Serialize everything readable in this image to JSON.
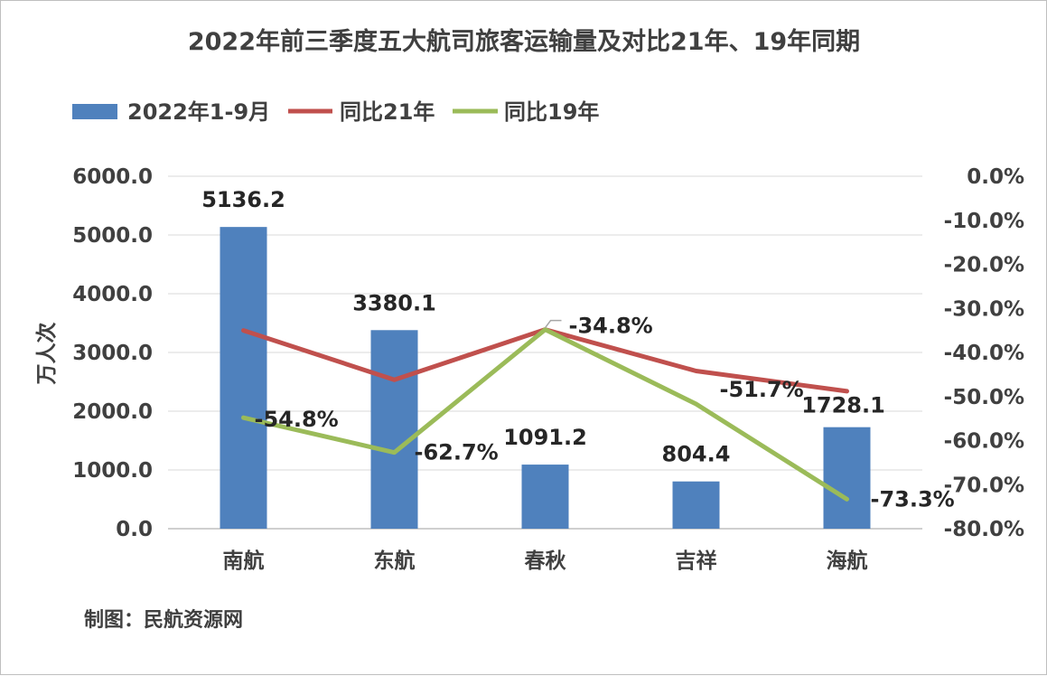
{
  "chart_data": {
    "type": "bar",
    "title": "2022年前三季度五大航司旅客运输量及对比21年、19年同期",
    "categories": [
      "南航",
      "东航",
      "春秋",
      "吉祥",
      "海航"
    ],
    "series": [
      {
        "name": "2022年1-9月",
        "type": "bar",
        "axis": "left",
        "color": "#4f81bd",
        "values": [
          5136.2,
          3380.1,
          1091.2,
          804.4,
          1728.1
        ],
        "labels": [
          "5136.2",
          "3380.1",
          "1091.2",
          "804.4",
          "1728.1"
        ]
      },
      {
        "name": "同比21年",
        "type": "line",
        "axis": "right",
        "color": "#c0504d",
        "values": [
          -35.0,
          -46.2,
          -34.8,
          -44.2,
          -48.8
        ]
      },
      {
        "name": "同比19年",
        "type": "line",
        "axis": "right",
        "color": "#9bbb59",
        "values": [
          -54.8,
          -62.7,
          -34.8,
          -51.7,
          -73.3
        ],
        "labels": [
          "-54.8%",
          "-62.7%",
          "-34.8%",
          "-51.7%",
          "-73.3%"
        ]
      }
    ],
    "ylabel": "万人次",
    "ylim": [
      0,
      6000
    ],
    "y_ticks": [
      "0.0",
      "1000.0",
      "2000.0",
      "3000.0",
      "4000.0",
      "5000.0",
      "6000.0"
    ],
    "y2lim": [
      -80,
      0
    ],
    "y2_ticks": [
      "-80.0%",
      "-70.0%",
      "-60.0%",
      "-50.0%",
      "-40.0%",
      "-30.0%",
      "-20.0%",
      "-10.0%",
      "0.0%"
    ],
    "grid": true,
    "legend": "top-left"
  },
  "source": "制图：民航资源网"
}
